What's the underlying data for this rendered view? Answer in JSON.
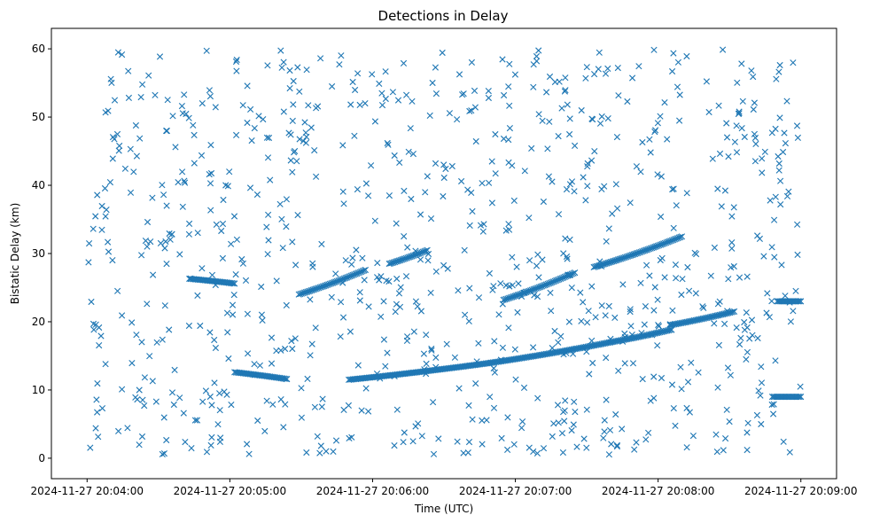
{
  "chart_data": {
    "type": "scatter",
    "title": "Detections in Delay",
    "xlabel": "Time (UTC)",
    "ylabel": "Bistatic Delay (km)",
    "marker": "x",
    "color": "#1f77b4",
    "grid": false,
    "xlim": [
      "2024-11-27 20:03:45",
      "2024-11-27 20:09:15"
    ],
    "ylim": [
      -3,
      63
    ],
    "xticks": [
      "2024-11-27 20:04:00",
      "2024-11-27 20:05:00",
      "2024-11-27 20:06:00",
      "2024-11-27 20:07:00",
      "2024-11-27 20:08:00",
      "2024-11-27 20:09:00"
    ],
    "yticks": [
      0,
      10,
      20,
      30,
      40,
      50,
      60
    ],
    "tracks": [
      {
        "start": "2024-11-27 20:04:43",
        "end": "2024-11-27 20:05:02",
        "delay_start": 26.3,
        "delay_end": 25.6
      },
      {
        "start": "2024-11-27 20:05:02",
        "end": "2024-11-27 20:05:24",
        "delay_start": 12.6,
        "delay_end": 11.6
      },
      {
        "start": "2024-11-27 20:05:29",
        "end": "2024-11-27 20:05:57",
        "delay_start": 24.0,
        "delay_end": 27.6
      },
      {
        "start": "2024-11-27 20:06:07",
        "end": "2024-11-27 20:06:23",
        "delay_start": 28.5,
        "delay_end": 30.5
      },
      {
        "start": "2024-11-27 20:05:50",
        "end": "2024-11-27 20:06:50",
        "delay_start": 11.5,
        "delay_end": 14.0
      },
      {
        "start": "2024-11-27 20:06:50",
        "end": "2024-11-27 20:07:40",
        "delay_start": 14.0,
        "delay_end": 17.0
      },
      {
        "start": "2024-11-27 20:07:40",
        "end": "2024-11-27 20:08:05",
        "delay_start": 17.0,
        "delay_end": 18.8
      },
      {
        "start": "2024-11-27 20:08:05",
        "end": "2024-11-27 20:08:32",
        "delay_start": 19.5,
        "delay_end": 21.5
      },
      {
        "start": "2024-11-27 20:06:55",
        "end": "2024-11-27 20:07:25",
        "delay_start": 23.2,
        "delay_end": 27.2
      },
      {
        "start": "2024-11-27 20:07:33",
        "end": "2024-11-27 20:08:10",
        "delay_start": 28.0,
        "delay_end": 32.5
      },
      {
        "start": "2024-11-27 20:08:48",
        "end": "2024-11-27 20:09:00",
        "delay_start": 9.0,
        "delay_end": 9.0
      },
      {
        "start": "2024-11-27 20:08:50",
        "end": "2024-11-27 20:09:00",
        "delay_start": 23.0,
        "delay_end": 23.0
      }
    ],
    "track_point_spacing_s": 0.6,
    "clutter": {
      "count": 900,
      "x_range": [
        "2024-11-27 20:04:00",
        "2024-11-27 20:09:00"
      ],
      "y_range": [
        0.5,
        60
      ]
    }
  }
}
